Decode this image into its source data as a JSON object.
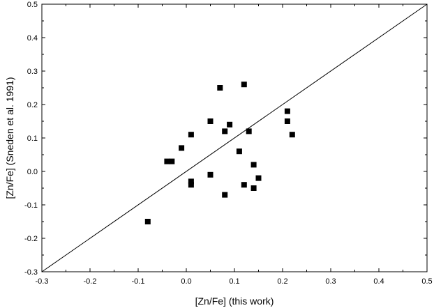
{
  "chart_data": {
    "type": "scatter",
    "title": "",
    "xlabel": "[Zn/Fe] (this work)",
    "ylabel": "[Zn/Fe] (Sneden et al. 1991)",
    "xlim": [
      -0.3,
      0.5
    ],
    "ylim": [
      -0.3,
      0.5
    ],
    "xticks": [
      -0.3,
      -0.2,
      -0.1,
      0.0,
      0.1,
      0.2,
      0.3,
      0.4,
      0.5
    ],
    "yticks": [
      -0.3,
      -0.2,
      -0.1,
      0.0,
      0.1,
      0.2,
      0.3,
      0.4,
      0.5
    ],
    "xtick_labels": [
      "-0.3",
      "-0.2",
      "-0.1",
      "0.0",
      "0.1",
      "0.2",
      "0.3",
      "0.4",
      "0.5"
    ],
    "ytick_labels": [
      "-0.3",
      "-0.2",
      "-0.1",
      "0.0",
      "0.1",
      "0.2",
      "0.3",
      "0.4",
      "0.5"
    ],
    "grid": false,
    "legend": "none",
    "reference_line": {
      "type": "identity",
      "from": [
        -0.3,
        -0.3
      ],
      "to": [
        0.5,
        0.5
      ]
    },
    "marker": "square",
    "marker_color": "#000000",
    "points": [
      {
        "x": -0.08,
        "y": -0.15
      },
      {
        "x": -0.04,
        "y": 0.03
      },
      {
        "x": -0.03,
        "y": 0.03
      },
      {
        "x": -0.01,
        "y": 0.07
      },
      {
        "x": 0.01,
        "y": 0.11
      },
      {
        "x": 0.01,
        "y": -0.03
      },
      {
        "x": 0.01,
        "y": -0.04
      },
      {
        "x": 0.05,
        "y": 0.15
      },
      {
        "x": 0.05,
        "y": -0.01
      },
      {
        "x": 0.07,
        "y": 0.25
      },
      {
        "x": 0.08,
        "y": 0.12
      },
      {
        "x": 0.08,
        "y": -0.07
      },
      {
        "x": 0.09,
        "y": 0.14
      },
      {
        "x": 0.11,
        "y": 0.06
      },
      {
        "x": 0.12,
        "y": 0.26
      },
      {
        "x": 0.12,
        "y": -0.04
      },
      {
        "x": 0.13,
        "y": 0.12
      },
      {
        "x": 0.14,
        "y": 0.02
      },
      {
        "x": 0.14,
        "y": -0.05
      },
      {
        "x": 0.15,
        "y": -0.02
      },
      {
        "x": 0.21,
        "y": 0.18
      },
      {
        "x": 0.21,
        "y": 0.15
      },
      {
        "x": 0.22,
        "y": 0.11
      }
    ]
  }
}
